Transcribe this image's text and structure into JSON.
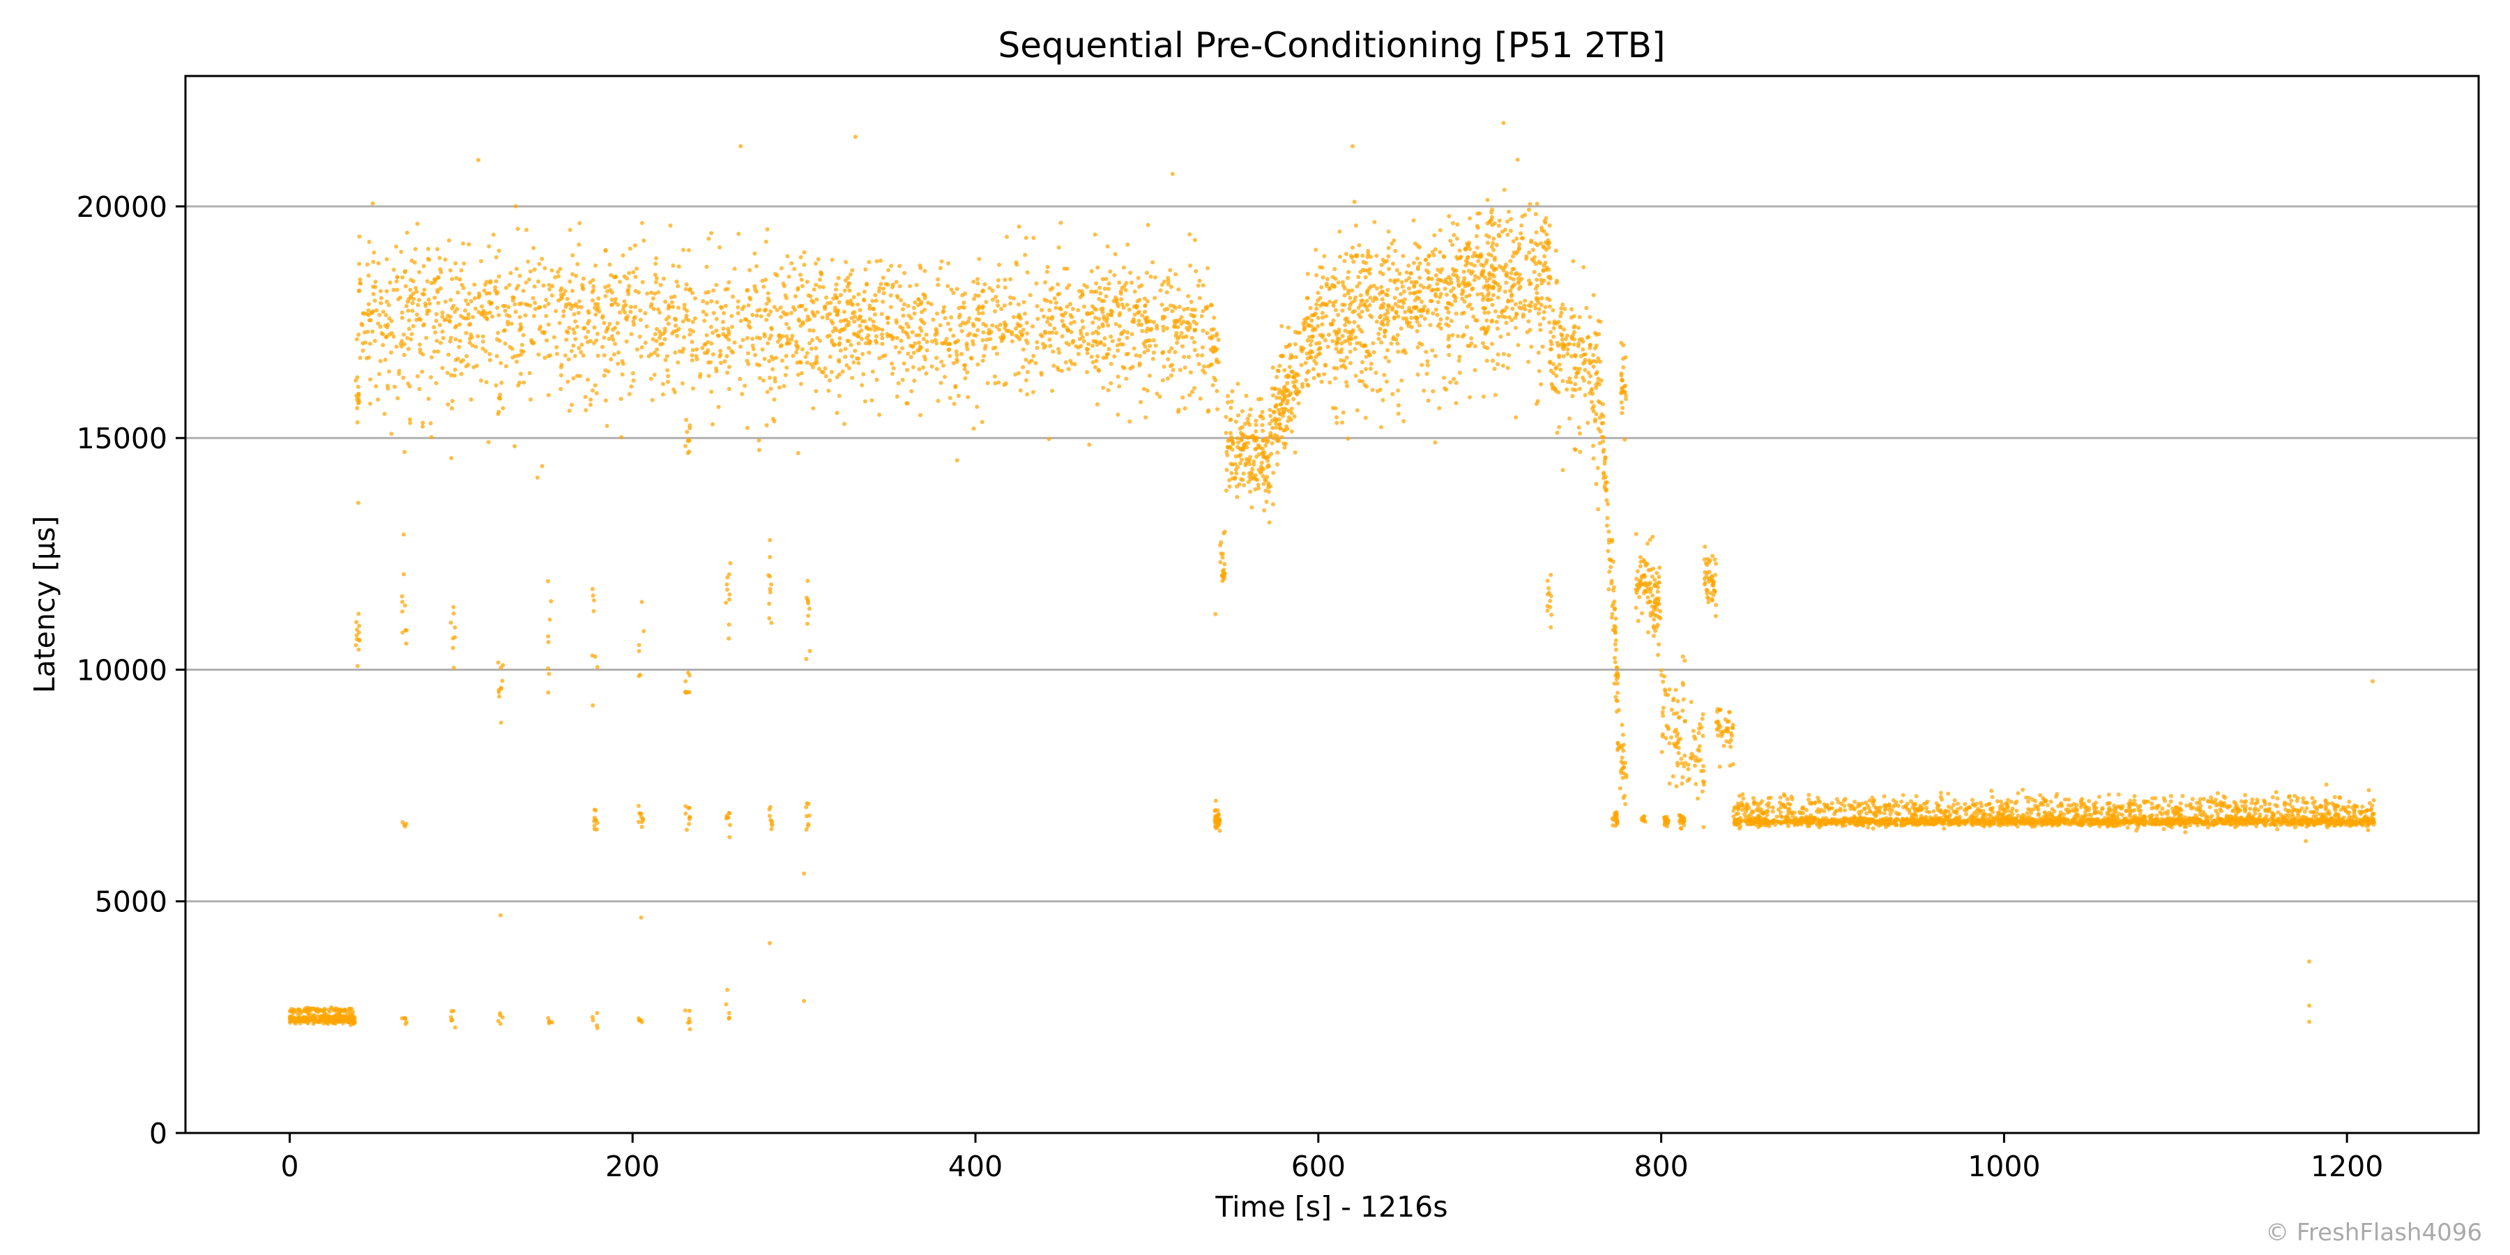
{
  "chart_data": {
    "type": "scatter",
    "title": "Sequential Pre-Conditioning [P51 2TB]",
    "xlabel": "Time [s] - 1216s",
    "ylabel": "Latency [µs]",
    "xlim": [
      -60.8,
      1276.8
    ],
    "ylim": [
      0,
      22814
    ],
    "xticks": [
      0,
      200,
      400,
      600,
      800,
      1000,
      1200
    ],
    "yticks": [
      0,
      5000,
      10000,
      15000,
      20000
    ],
    "grid": "horizontal",
    "legend": "none",
    "series": [
      {
        "name": "latency",
        "color": "#FFA500",
        "segments": [
          {
            "x": [
              0,
              38
            ],
            "y": [
              2450,
              2450
            ],
            "sd": 50,
            "n": 260
          },
          {
            "x": [
              0,
              38
            ],
            "y": [
              2650,
              2650
            ],
            "sd": 30,
            "n": 70
          },
          {
            "x": [
              40,
              300
            ],
            "y": [
              17800,
              17500
            ],
            "sd": 750,
            "n": 1000
          },
          {
            "x": [
              300,
              538
            ],
            "y": [
              17600,
              17500
            ],
            "sd": 650,
            "n": 1000
          },
          {
            "x": [
              538,
              542
            ],
            "y": [
              17000,
              16500
            ],
            "sd": 500,
            "n": 20
          },
          {
            "x": [
              546,
              572
            ],
            "y": [
              15000,
              14400
            ],
            "sd": 500,
            "n": 180
          },
          {
            "x": [
              572,
              600
            ],
            "y": [
              15200,
              17500
            ],
            "sd": 600,
            "n": 200
          },
          {
            "x": [
              600,
              680
            ],
            "y": [
              17700,
              18200
            ],
            "sd": 700,
            "n": 500
          },
          {
            "x": [
              680,
              735
            ],
            "y": [
              18200,
              18900
            ],
            "sd": 750,
            "n": 380
          },
          {
            "x": [
              735,
              765
            ],
            "y": [
              17600,
              16400
            ],
            "sd": 700,
            "n": 180
          },
          {
            "x": [
              765,
              775
            ],
            "y": [
              15500,
              9500
            ],
            "sd": 500,
            "n": 80
          },
          {
            "x": [
              774,
              780
            ],
            "y": [
              8500,
              7600
            ],
            "sd": 400,
            "n": 30
          },
          {
            "x": [
              785,
              800
            ],
            "y": [
              12000,
              11400
            ],
            "sd": 450,
            "n": 100
          },
          {
            "x": [
              800,
              812
            ],
            "y": [
              9200,
              8200
            ],
            "sd": 500,
            "n": 50
          },
          {
            "x": [
              812,
              825
            ],
            "y": [
              8800,
              7800
            ],
            "sd": 600,
            "n": 50
          },
          {
            "x": [
              825,
              832
            ],
            "y": [
              12000,
              11800
            ],
            "sd": 350,
            "n": 45
          },
          {
            "x": [
              832,
              842
            ],
            "y": [
              8800,
              8600
            ],
            "sd": 300,
            "n": 40
          },
          {
            "x": [
              842,
              1216
            ],
            "y": [
              6720,
              6720
            ],
            "sd": 45,
            "n": 1500
          },
          {
            "x": [
              842,
              1216
            ],
            "y": [
              6980,
              6980
            ],
            "sd": 160,
            "n": 900
          }
        ],
        "clusters": [
          {
            "x": 40,
            "y": 10800,
            "sd": 350,
            "n": 12
          },
          {
            "x": 40,
            "y": 16200,
            "sd": 400,
            "n": 14
          },
          {
            "x": 67,
            "y": 2450,
            "sd": 60,
            "n": 6
          },
          {
            "x": 67,
            "y": 6700,
            "sd": 40,
            "n": 4
          },
          {
            "x": 67,
            "y": 11500,
            "sd": 900,
            "n": 10
          },
          {
            "x": 95,
            "y": 2500,
            "sd": 150,
            "n": 6
          },
          {
            "x": 95,
            "y": 10900,
            "sd": 600,
            "n": 8
          },
          {
            "x": 123,
            "y": 2450,
            "sd": 80,
            "n": 5
          },
          {
            "x": 123,
            "y": 9700,
            "sd": 400,
            "n": 10
          },
          {
            "x": 123,
            "y": 15600,
            "sd": 300,
            "n": 8
          },
          {
            "x": 152,
            "y": 2450,
            "sd": 80,
            "n": 5
          },
          {
            "x": 152,
            "y": 10700,
            "sd": 800,
            "n": 8
          },
          {
            "x": 178,
            "y": 2500,
            "sd": 150,
            "n": 5
          },
          {
            "x": 178,
            "y": 6800,
            "sd": 150,
            "n": 10
          },
          {
            "x": 178,
            "y": 10900,
            "sd": 700,
            "n": 8
          },
          {
            "x": 205,
            "y": 2450,
            "sd": 150,
            "n": 5
          },
          {
            "x": 205,
            "y": 6800,
            "sd": 120,
            "n": 10
          },
          {
            "x": 205,
            "y": 10500,
            "sd": 400,
            "n": 6
          },
          {
            "x": 232,
            "y": 2500,
            "sd": 150,
            "n": 6
          },
          {
            "x": 232,
            "y": 6800,
            "sd": 150,
            "n": 10
          },
          {
            "x": 232,
            "y": 9500,
            "sd": 200,
            "n": 8
          },
          {
            "x": 232,
            "y": 15200,
            "sd": 300,
            "n": 10
          },
          {
            "x": 256,
            "y": 2600,
            "sd": 250,
            "n": 5
          },
          {
            "x": 256,
            "y": 6800,
            "sd": 150,
            "n": 8
          },
          {
            "x": 256,
            "y": 11600,
            "sd": 500,
            "n": 10
          },
          {
            "x": 280,
            "y": 6800,
            "sd": 150,
            "n": 8
          },
          {
            "x": 280,
            "y": 12000,
            "sd": 500,
            "n": 10
          },
          {
            "x": 302,
            "y": 6800,
            "sd": 200,
            "n": 8
          },
          {
            "x": 302,
            "y": 11500,
            "sd": 500,
            "n": 10
          },
          {
            "x": 541,
            "y": 6750,
            "sd": 120,
            "n": 40
          },
          {
            "x": 544,
            "y": 12400,
            "sd": 350,
            "n": 20
          },
          {
            "x": 735,
            "y": 11400,
            "sd": 350,
            "n": 12
          },
          {
            "x": 773,
            "y": 6750,
            "sd": 80,
            "n": 20
          },
          {
            "x": 790,
            "y": 6750,
            "sd": 60,
            "n": 8
          },
          {
            "x": 803,
            "y": 6750,
            "sd": 80,
            "n": 20
          },
          {
            "x": 812,
            "y": 6750,
            "sd": 80,
            "n": 20
          },
          {
            "x": 778,
            "y": 16200,
            "sd": 500,
            "n": 25
          }
        ],
        "outliers": [
          [
            1178,
            2750
          ],
          [
            1178,
            3700
          ],
          [
            1178,
            2400
          ],
          [
            1215,
            9750
          ],
          [
            1176,
            6300
          ],
          [
            330,
            21500
          ],
          [
            708,
            21800
          ],
          [
            263,
            21300
          ],
          [
            110,
            21000
          ],
          [
            620,
            21300
          ],
          [
            300,
            5600
          ],
          [
            300,
            2850
          ],
          [
            123,
            4700
          ],
          [
            205,
            4650
          ],
          [
            280,
            4100
          ],
          [
            40,
            13600
          ],
          [
            67,
            14700
          ],
          [
            515,
            20700
          ],
          [
            540,
            11200
          ]
        ]
      }
    ]
  },
  "watermark": "© FreshFlash4096"
}
